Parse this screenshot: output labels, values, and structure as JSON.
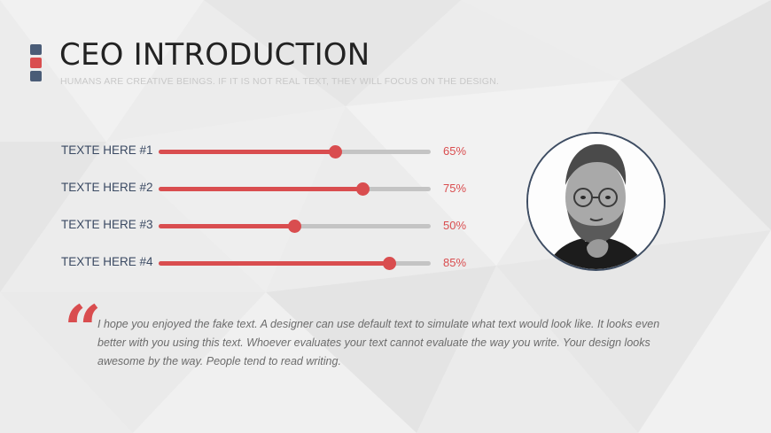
{
  "slide": {
    "title": "CEO INTRODUCTION",
    "subtitle": "HUMANS ARE CREATIVE BEINGS. IF IT IS NOT REAL TEXT, THEY WILL FOCUS ON THE DESIGN."
  },
  "skills": [
    {
      "label": "TEXTE HERE #1",
      "percent_text": "65%",
      "value": 0.65
    },
    {
      "label": "TEXTE HERE #2",
      "percent_text": "75%",
      "value": 0.75
    },
    {
      "label": "TEXTE HERE #3",
      "percent_text": "50%",
      "value": 0.5
    },
    {
      "label": "TEXTE HERE #4",
      "percent_text": "85%",
      "value": 0.85
    }
  ],
  "quote": {
    "mark": "“",
    "text": "I hope you enjoyed the fake text. A designer can use default text to simulate what text would look like. It looks even better with you using this text. Whoever evaluates your text cannot evaluate the way you write. Your design looks awesome by the way. People tend to read writing."
  },
  "colors": {
    "accent_red": "#d94d4f",
    "navy": "#4a5c77",
    "track_gray": "#c4c4c4"
  },
  "icons": {
    "portrait": "ceo-portrait-photo"
  }
}
